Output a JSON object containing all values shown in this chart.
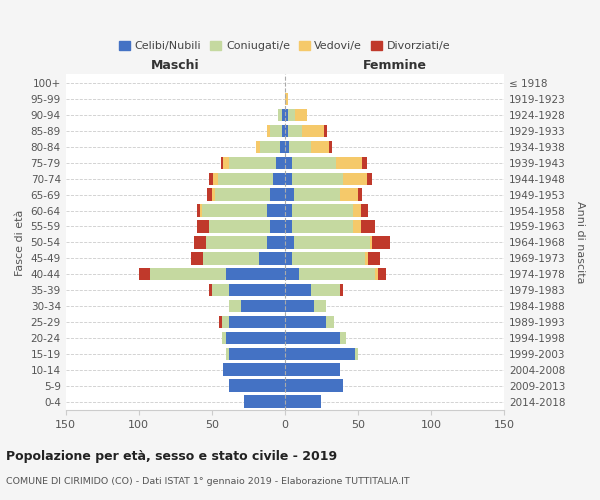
{
  "age_groups": [
    "0-4",
    "5-9",
    "10-14",
    "15-19",
    "20-24",
    "25-29",
    "30-34",
    "35-39",
    "40-44",
    "45-49",
    "50-54",
    "55-59",
    "60-64",
    "65-69",
    "70-74",
    "75-79",
    "80-84",
    "85-89",
    "90-94",
    "95-99",
    "100+"
  ],
  "birth_years": [
    "2014-2018",
    "2009-2013",
    "2004-2008",
    "1999-2003",
    "1994-1998",
    "1989-1993",
    "1984-1988",
    "1979-1983",
    "1974-1978",
    "1969-1973",
    "1964-1968",
    "1959-1963",
    "1954-1958",
    "1949-1953",
    "1944-1948",
    "1939-1943",
    "1934-1938",
    "1929-1933",
    "1924-1928",
    "1919-1923",
    "≤ 1918"
  ],
  "males": {
    "celibi": [
      28,
      38,
      42,
      38,
      40,
      38,
      30,
      38,
      40,
      18,
      12,
      10,
      12,
      10,
      8,
      6,
      3,
      2,
      2,
      0,
      0
    ],
    "coniugati": [
      0,
      0,
      0,
      2,
      3,
      5,
      8,
      12,
      52,
      38,
      42,
      42,
      45,
      38,
      38,
      32,
      14,
      8,
      3,
      0,
      0
    ],
    "vedovi": [
      0,
      0,
      0,
      0,
      0,
      0,
      0,
      0,
      0,
      0,
      0,
      0,
      1,
      2,
      3,
      4,
      3,
      2,
      0,
      0,
      0
    ],
    "divorziati": [
      0,
      0,
      0,
      0,
      0,
      2,
      0,
      2,
      8,
      8,
      8,
      8,
      2,
      3,
      3,
      2,
      0,
      0,
      0,
      0,
      0
    ]
  },
  "females": {
    "nubili": [
      25,
      40,
      38,
      48,
      38,
      28,
      20,
      18,
      10,
      5,
      6,
      5,
      5,
      6,
      5,
      5,
      3,
      2,
      2,
      0,
      0
    ],
    "coniugate": [
      0,
      0,
      0,
      2,
      4,
      6,
      8,
      20,
      52,
      50,
      52,
      42,
      42,
      32,
      35,
      30,
      15,
      10,
      5,
      0,
      0
    ],
    "vedove": [
      0,
      0,
      0,
      0,
      0,
      0,
      0,
      0,
      2,
      2,
      2,
      5,
      5,
      12,
      16,
      18,
      12,
      15,
      8,
      2,
      0
    ],
    "divorziate": [
      0,
      0,
      0,
      0,
      0,
      0,
      0,
      2,
      5,
      8,
      12,
      10,
      5,
      3,
      4,
      3,
      2,
      2,
      0,
      0,
      0
    ]
  },
  "colors": {
    "celibi_nubili": "#4472c4",
    "coniugati": "#c5d9a0",
    "vedovi": "#f5c96a",
    "divorziati": "#c0392b"
  },
  "title": "Popolazione per età, sesso e stato civile - 2019",
  "subtitle": "COMUNE DI CIRIMIDO (CO) - Dati ISTAT 1° gennaio 2019 - Elaborazione TUTTITALIA.IT",
  "ylabel_left": "Fasce di età",
  "ylabel_right": "Anni di nascita",
  "xlabel_maschi": "Maschi",
  "xlabel_femmine": "Femmine",
  "xlim": 150,
  "bg_color": "#f5f5f5",
  "plot_bg": "#ffffff",
  "legend_labels": [
    "Celibi/Nubili",
    "Coniugati/e",
    "Vedovi/e",
    "Divorziati/e"
  ]
}
